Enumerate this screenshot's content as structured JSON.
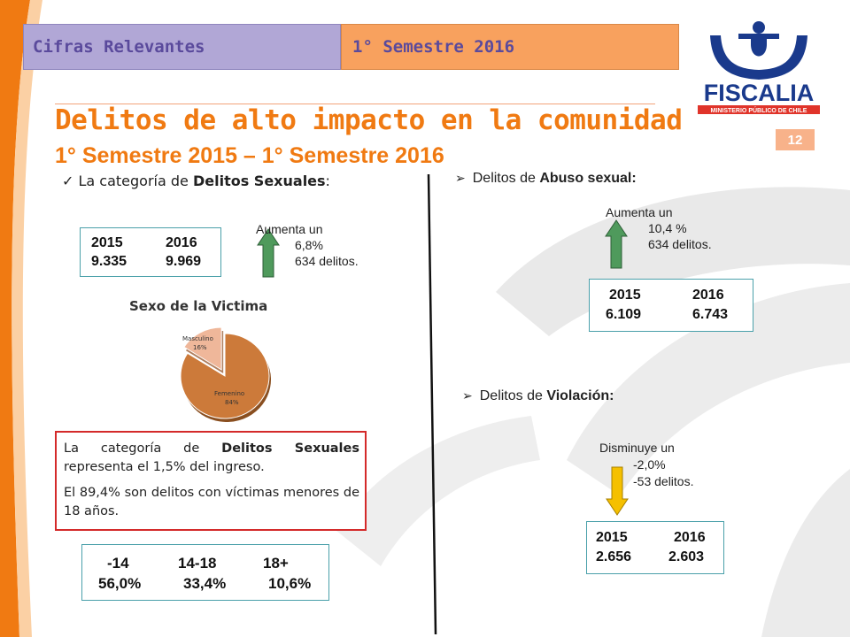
{
  "header": {
    "tab_left": "Cifras Relevantes",
    "tab_right": "1° Semestre 2016",
    "title": "Delitos de alto impacto en la comunidad",
    "subtitle": "1° Semestre 2015 – 1° Semestre 2016",
    "page_number": "12"
  },
  "logo": {
    "name": "FISCALIA",
    "tagline": "MINISTERIO PÚBLICO DE CHILE"
  },
  "sexuales": {
    "check_mark": "✓",
    "heading_pre": "La categoría de ",
    "heading_bold": "Delitos Sexuales",
    "heading_post": ":",
    "change_label": "Aumenta un",
    "change_pct": "6,8%",
    "change_count": "634 delitos.",
    "arrow_direction": "up",
    "arrow_color": "#4f9a5c",
    "years": [
      "2015",
      "2016"
    ],
    "values": [
      "9.335",
      "9.969"
    ],
    "note1_pre": "La categoría de ",
    "note1_bold": "Delitos Sexuales",
    "note1_post": " representa el 1,5% del ingreso.",
    "note2": "El 89,4% son delitos con víctimas menores de 18 años.",
    "age_groups": [
      "-14",
      "14-18",
      "18+"
    ],
    "age_pcts": [
      "56,0%",
      "33,4%",
      "10,6%"
    ]
  },
  "victim_sex_chart": {
    "title": "Sexo de la Victima",
    "slice1_label": "Masculino",
    "slice1_pct": "16%",
    "slice2_label": "Femenino",
    "slice2_pct": "84%"
  },
  "chart_data": {
    "type": "pie",
    "title": "Sexo de la Victima",
    "categories": [
      "Masculino",
      "Femenino"
    ],
    "values": [
      16,
      84
    ],
    "colors": [
      "#efb79a",
      "#cc7a3a"
    ]
  },
  "abuso": {
    "bullet": "➢",
    "heading_pre": "Delitos de ",
    "heading_bold": "Abuso sexual:",
    "change_label": "Aumenta un",
    "change_pct": "10,4 %",
    "change_count": "634  delitos.",
    "arrow_direction": "up",
    "arrow_color": "#4f9a5c",
    "years": [
      "2015",
      "2016"
    ],
    "values": [
      "6.109",
      "6.743"
    ]
  },
  "violacion": {
    "bullet": "➢",
    "heading_pre": "Delitos de ",
    "heading_bold": "Violación:",
    "change_label": "Disminuye un",
    "change_pct": "-2,0%",
    "change_count": "-53 delitos.",
    "arrow_direction": "down",
    "arrow_color": "#f5c000",
    "years": [
      "2015",
      "2016"
    ],
    "values": [
      "2.656",
      "2.603"
    ]
  }
}
